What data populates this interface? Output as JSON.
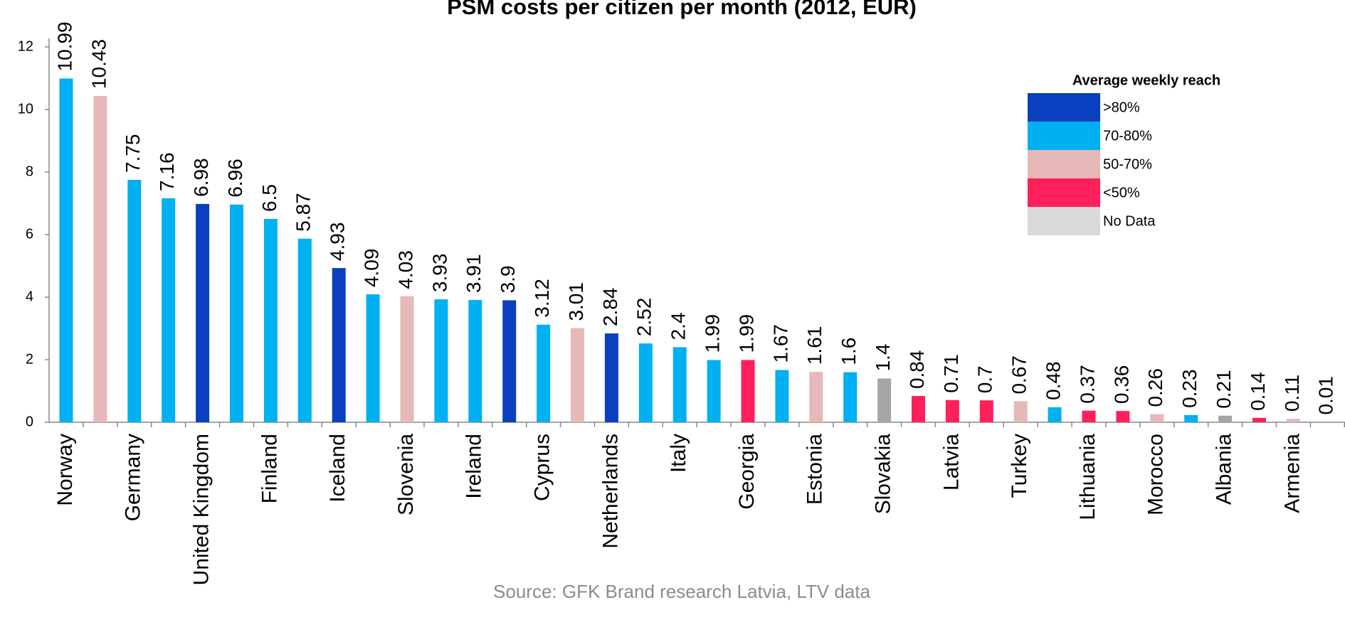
{
  "chart_data": {
    "type": "bar",
    "title": "PSM costs per citizen per month (2012, EUR)",
    "source": "Source: GFK Brand research Latvia, LTV data",
    "categories": [
      "Norway",
      null,
      "Germany",
      null,
      "United Kingdom",
      null,
      "Finland",
      null,
      "Iceland",
      null,
      "Slovenia",
      null,
      "Ireland",
      null,
      "Cyprus",
      null,
      "Netherlands",
      null,
      "Italy",
      null,
      "Georgia",
      null,
      "Estonia",
      null,
      "Slovakia",
      null,
      "Latvia",
      null,
      "Turkey",
      null,
      "Lithuania",
      null,
      "Morocco",
      null,
      "Albania",
      null,
      "Armenia",
      null
    ],
    "values": [
      10.99,
      10.43,
      7.75,
      7.16,
      6.98,
      6.96,
      6.5,
      5.87,
      4.93,
      4.09,
      4.03,
      3.93,
      3.91,
      3.9,
      3.12,
      3.01,
      2.84,
      2.52,
      2.4,
      1.99,
      1.99,
      1.67,
      1.61,
      1.6,
      1.4,
      0.84,
      0.71,
      0.7,
      0.67,
      0.48,
      0.37,
      0.36,
      0.26,
      0.23,
      0.21,
      0.14,
      0.11,
      0.01
    ],
    "colors": [
      "#00b0f0",
      "#e6b8b7",
      "#00b0f0",
      "#00b0f0",
      "#0a3fbf",
      "#00b0f0",
      "#00b0f0",
      "#00b0f0",
      "#0a3fbf",
      "#00b0f0",
      "#e6b8b7",
      "#00b0f0",
      "#00b0f0",
      "#0a3fbf",
      "#00b0f0",
      "#e6b8b7",
      "#0a3fbf",
      "#00b0f0",
      "#00b0f0",
      "#00b0f0",
      "#ff1f5a",
      "#00b0f0",
      "#e6b8b7",
      "#00b0f0",
      "#a6a6a6",
      "#ff1f5a",
      "#ff1f5a",
      "#ff1f5a",
      "#e6b8b7",
      "#00b0f0",
      "#ff1f5a",
      "#ff1f5a",
      "#e6b8b7",
      "#00b0f0",
      "#a6a6a6",
      "#ff1f5a",
      "#e6b8b7",
      "#00b0f0"
    ],
    "legend": {
      "title": "Average weekly reach",
      "items": [
        {
          "label": ">80%",
          "color": "#0a3fbf"
        },
        {
          "label": "70-80%",
          "color": "#00b0f0"
        },
        {
          "label": "50-70%",
          "color": "#e6b8b7"
        },
        {
          "label": "<50%",
          "color": "#ff1f5a"
        },
        {
          "label": "No Data",
          "color": "#d9d9d9"
        }
      ]
    },
    "ylim": [
      0,
      12
    ],
    "yticks": [
      0,
      2,
      4,
      6,
      8,
      10,
      12
    ]
  }
}
